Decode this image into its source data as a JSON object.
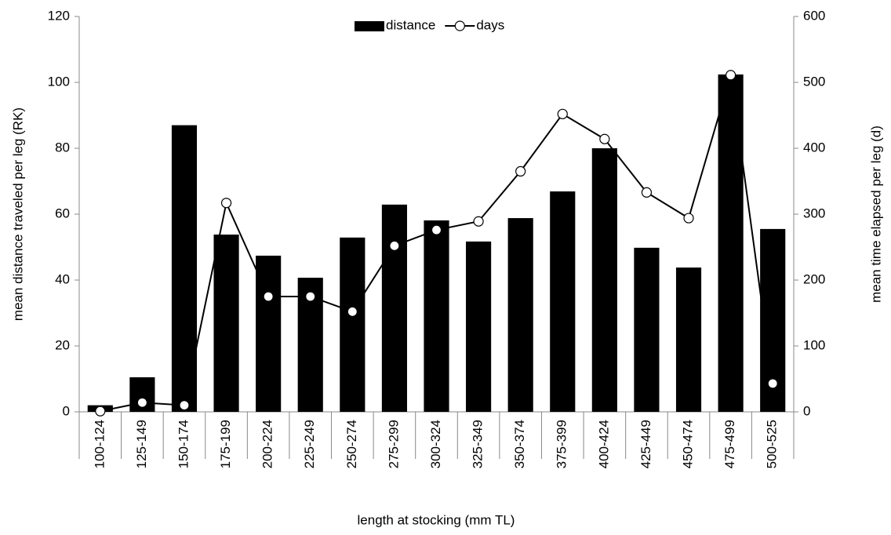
{
  "chart_data": {
    "type": "bar_line",
    "xlabel": "length at stocking (mm TL)",
    "ylabel": "mean distance traveled per leg (RK)",
    "y2label": "mean time elapsed per leg (d)",
    "categories": [
      "100-124",
      "125-149",
      "150-174",
      "175-199",
      "200-224",
      "225-249",
      "250-274",
      "275-299",
      "300-324",
      "325-349",
      "350-374",
      "375-399",
      "400-424",
      "425-449",
      "450-474",
      "475-499",
      "500-525"
    ],
    "series": [
      {
        "name": "distance",
        "kind": "bar",
        "color": "#000000",
        "values": [
          2,
          10.5,
          87,
          53.8,
          47.4,
          40.7,
          52.9,
          62.9,
          58.1,
          51.7,
          58.8,
          66.9,
          80,
          49.8,
          43.8,
          102.4,
          55.5
        ]
      },
      {
        "name": "days",
        "kind": "line",
        "axis": "y2",
        "color": "#000000",
        "values": [
          1,
          14,
          10,
          317,
          175,
          175,
          152,
          252,
          276,
          289,
          365,
          452,
          414,
          333,
          294,
          511,
          43
        ]
      }
    ],
    "ylim": [
      0,
      120
    ],
    "yticks": [
      0,
      20,
      40,
      60,
      80,
      100,
      120
    ],
    "y2lim": [
      0,
      600
    ],
    "y2ticks": [
      0,
      100,
      200,
      300,
      400,
      500,
      600
    ],
    "legend": "top"
  }
}
